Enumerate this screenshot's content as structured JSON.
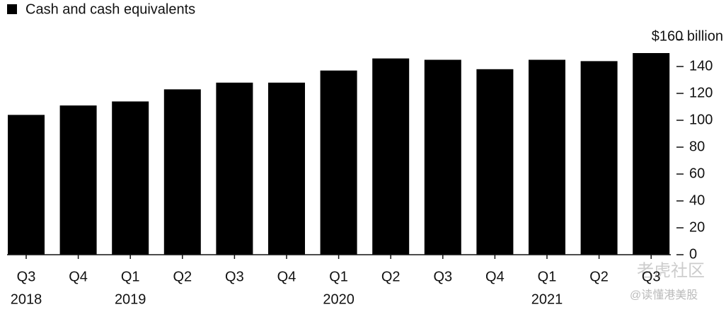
{
  "chart_data": {
    "type": "bar",
    "categories": [
      "Q3",
      "Q4",
      "Q1",
      "Q2",
      "Q3",
      "Q4",
      "Q1",
      "Q2",
      "Q3",
      "Q4",
      "Q1",
      "Q2",
      "Q3"
    ],
    "year_labels": [
      "2018",
      null,
      "2019",
      null,
      null,
      null,
      "2020",
      null,
      null,
      null,
      "2021",
      null,
      null
    ],
    "series": [
      {
        "name": "Cash and cash equivalents",
        "color": "#000000",
        "values": [
          104,
          111,
          114,
          123,
          128,
          128,
          137,
          146,
          145,
          138,
          145,
          144,
          150
        ]
      }
    ],
    "ylim": [
      0,
      160
    ],
    "yticks": [
      0,
      20,
      40,
      60,
      80,
      100,
      120,
      140,
      {
        "value": 160,
        "label": "$160 billion"
      }
    ],
    "legend": "top-left",
    "watermark": [
      "老虎社区",
      "@读懂港美股"
    ]
  }
}
